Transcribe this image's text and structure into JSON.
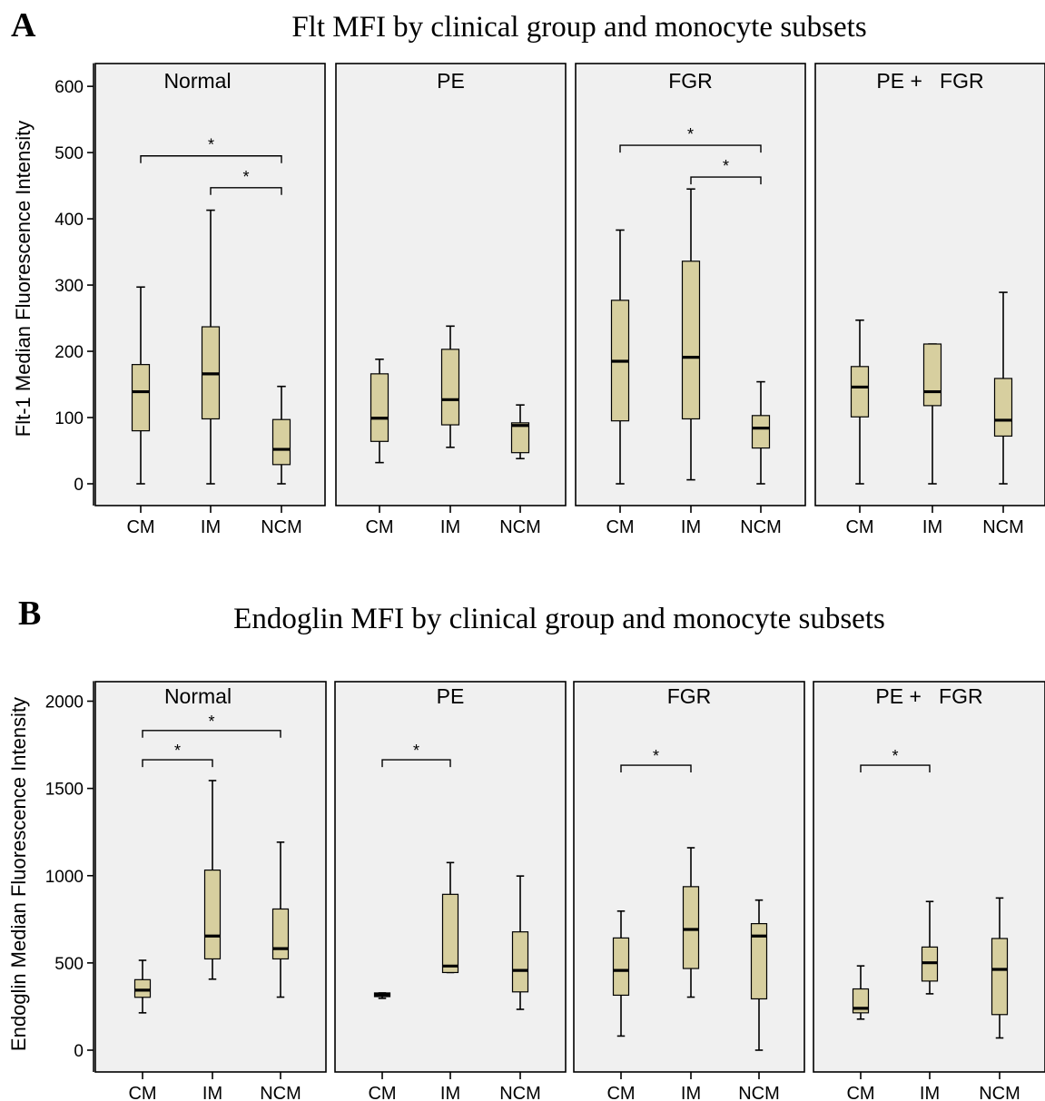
{
  "colors": {
    "panel_bg": "#f0f0f0",
    "box_fill": "#d7cf9f",
    "stroke": "#000000"
  },
  "chart_data": [
    {
      "type": "box",
      "panel_letter": "A",
      "title": "Flt MFI by clinical group and monocyte subsets",
      "ylabel": "Flt-1 Median Fluorescence Intensity",
      "ylim": [
        -30,
        635
      ],
      "yticks": [
        0,
        100,
        200,
        300,
        400,
        500,
        600
      ],
      "grid": false,
      "categories": [
        "CM",
        "IM",
        "NCM"
      ],
      "facets": [
        {
          "name": "Normal",
          "boxes": [
            {
              "category": "CM",
              "min": 0,
              "q1": 80,
              "median": 139,
              "q3": 180,
              "max": 297
            },
            {
              "category": "IM",
              "min": 0,
              "q1": 98,
              "median": 166,
              "q3": 237,
              "max": 413
            },
            {
              "category": "NCM",
              "min": 0,
              "q1": 29,
              "median": 52,
              "q3": 97,
              "max": 147
            }
          ],
          "significance": [
            {
              "from": "CM",
              "to": "NCM",
              "y": 495,
              "label": "*"
            },
            {
              "from": "IM",
              "to": "NCM",
              "y": 447,
              "label": "*"
            }
          ]
        },
        {
          "name": "PE",
          "boxes": [
            {
              "category": "CM",
              "min": 32,
              "q1": 64,
              "median": 99,
              "q3": 166,
              "max": 188
            },
            {
              "category": "IM",
              "min": 55,
              "q1": 89,
              "median": 127,
              "q3": 203,
              "max": 238
            },
            {
              "category": "NCM",
              "min": 38,
              "q1": 47,
              "median": 88,
              "q3": 92,
              "max": 119
            }
          ],
          "significance": []
        },
        {
          "name": "FGR",
          "boxes": [
            {
              "category": "CM",
              "min": 0,
              "q1": 95,
              "median": 185,
              "q3": 277,
              "max": 383
            },
            {
              "category": "IM",
              "min": 6,
              "q1": 98,
              "median": 191,
              "q3": 336,
              "max": 445
            },
            {
              "category": "NCM",
              "min": 0,
              "q1": 54,
              "median": 84,
              "q3": 103,
              "max": 154
            }
          ],
          "significance": [
            {
              "from": "CM",
              "to": "NCM",
              "y": 511,
              "label": "*"
            },
            {
              "from": "IM",
              "to": "NCM",
              "y": 463,
              "label": "*"
            }
          ]
        },
        {
          "name": "PE +   FGR",
          "boxes": [
            {
              "category": "CM",
              "min": 0,
              "q1": 101,
              "median": 146,
              "q3": 177,
              "max": 247
            },
            {
              "category": "IM",
              "min": 0,
              "q1": 118,
              "median": 139,
              "q3": 211,
              "max": 211
            },
            {
              "category": "NCM",
              "min": 0,
              "q1": 72,
              "median": 96,
              "q3": 159,
              "max": 289
            }
          ],
          "significance": []
        }
      ]
    },
    {
      "type": "box",
      "panel_letter": "B",
      "title": "Endoglin MFI by clinical group and monocyte subsets",
      "ylabel": "Endoglin Median Fluorescence Intensity",
      "ylim": [
        -110,
        2115
      ],
      "yticks": [
        0,
        500,
        1000,
        1500,
        2000
      ],
      "grid": false,
      "categories": [
        "CM",
        "IM",
        "NCM"
      ],
      "facets": [
        {
          "name": "Normal",
          "boxes": [
            {
              "category": "CM",
              "min": 214,
              "q1": 303,
              "median": 344,
              "q3": 404,
              "max": 515
            },
            {
              "category": "IM",
              "min": 407,
              "q1": 523,
              "median": 654,
              "q3": 1032,
              "max": 1545
            },
            {
              "category": "NCM",
              "min": 304,
              "q1": 523,
              "median": 582,
              "q3": 809,
              "max": 1192
            }
          ],
          "significance": [
            {
              "from": "CM",
              "to": "NCM",
              "y": 1832,
              "label": "*"
            },
            {
              "from": "CM",
              "to": "IM",
              "y": 1664,
              "label": "*"
            }
          ]
        },
        {
          "name": "PE",
          "boxes": [
            {
              "category": "CM",
              "min": 297,
              "q1": 307,
              "median": 318,
              "q3": 328,
              "max": 328
            },
            {
              "category": "IM",
              "min": 445,
              "q1": 445,
              "median": 482,
              "q3": 893,
              "max": 1075
            },
            {
              "category": "NCM",
              "min": 234,
              "q1": 334,
              "median": 457,
              "q3": 678,
              "max": 998
            }
          ],
          "significance": [
            {
              "from": "CM",
              "to": "IM",
              "y": 1664,
              "label": "*"
            }
          ]
        },
        {
          "name": "FGR",
          "boxes": [
            {
              "category": "CM",
              "min": 81,
              "q1": 315,
              "median": 457,
              "q3": 643,
              "max": 797
            },
            {
              "category": "IM",
              "min": 304,
              "q1": 468,
              "median": 692,
              "q3": 937,
              "max": 1160
            },
            {
              "category": "NCM",
              "min": 0,
              "q1": 294,
              "median": 654,
              "q3": 725,
              "max": 860
            }
          ],
          "significance": [
            {
              "from": "CM",
              "to": "IM",
              "y": 1633,
              "label": "*"
            }
          ]
        },
        {
          "name": "PE +   FGR",
          "boxes": [
            {
              "category": "CM",
              "min": 178,
              "q1": 214,
              "median": 240,
              "q3": 351,
              "max": 483
            },
            {
              "category": "IM",
              "min": 323,
              "q1": 396,
              "median": 501,
              "q3": 591,
              "max": 852
            },
            {
              "category": "NCM",
              "min": 70,
              "q1": 204,
              "median": 463,
              "q3": 640,
              "max": 872
            }
          ],
          "significance": [
            {
              "from": "CM",
              "to": "IM",
              "y": 1633,
              "label": "*"
            }
          ]
        }
      ]
    }
  ]
}
